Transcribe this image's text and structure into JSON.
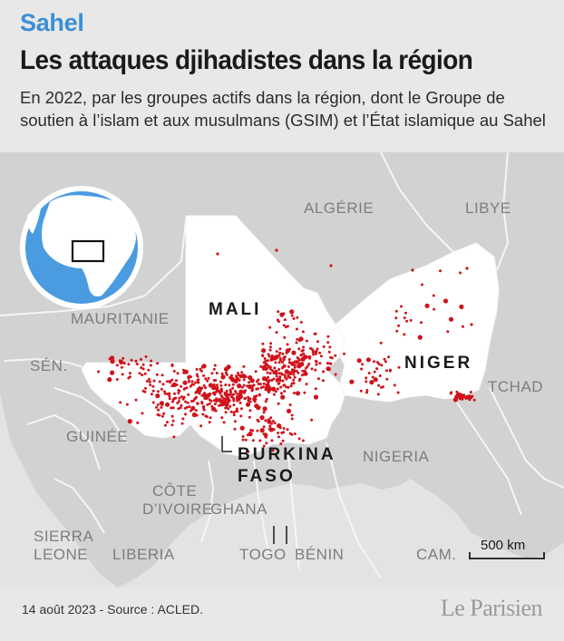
{
  "header": {
    "kicker": "Sahel",
    "title": "Les attaques djihadistes dans la région",
    "subtitle": "En 2022, par les groupes actifs dans la région, dont le Groupe de soutien à l’islam et aux musulmans (GSIM) et l’État islamique au Sahel"
  },
  "map": {
    "focus_countries": [
      "MALI",
      "NIGER",
      "BURKINA",
      "FASO"
    ],
    "neighbors": {
      "algerie": "ALGÉRIE",
      "libye": "LIBYE",
      "mauritanie": "MAURITANIE",
      "senegal": "SÉN.",
      "tchad": "TCHAD",
      "guinee": "GUINÉE",
      "nigeria": "NIGERIA",
      "cote1": "CÔTE",
      "cote2": "D’IVOIRE",
      "ghana": "GHANA",
      "sierra1": "SIERRA",
      "sierra2": "LEONE",
      "liberia": "LIBERIA",
      "togo": "TOGO",
      "benin": "BÉNIN",
      "cameroun": "CAM."
    },
    "scale_label": "500 km",
    "colors": {
      "sea": "#e3e3e3",
      "land": "#d2d2d2",
      "focus": "#ffffff",
      "border": "#f5f5f5",
      "attack": "#d0121b",
      "globe_ocean": "#4a9be0",
      "globe_land": "#ffffff"
    }
  },
  "footer": {
    "date_source": "14 août 2023 - Source : ACLED.",
    "logo": "Le Parisien"
  }
}
